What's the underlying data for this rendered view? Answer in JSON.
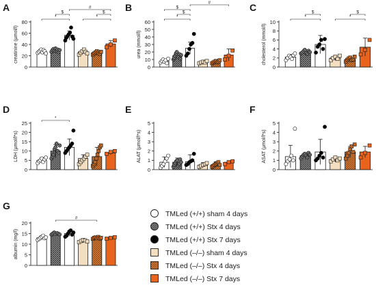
{
  "figure": {
    "groups": [
      "TMLed (+/+) sham 4 days",
      "TMLed (+/+) Stx 4 days",
      "TMLed (+/+) Stx 7 days",
      "TMLed (–/–) sham 4 days",
      "TMLed (–/–) Stx 4 days",
      "TMLed (–/–) Stx 7 days"
    ],
    "colors": {
      "axis": "#1a1a1a",
      "white": "#ffffff",
      "gray": "#bbbbbb",
      "black": "#000000",
      "beige": "#f3dec0",
      "orange_hatch": "#e8893b",
      "orange": "#e8641c"
    }
  },
  "chart_data": [
    {
      "panel": "A",
      "type": "bar",
      "ylabel": "creatinine (µmol/l)",
      "ylim": [
        0,
        80
      ],
      "yticks": [
        "0",
        "20",
        "40",
        "60",
        "80"
      ],
      "values": [
        28,
        30,
        56,
        27,
        26,
        41
      ],
      "errors": [
        3,
        3,
        8,
        3,
        2,
        6
      ],
      "points": [
        [
          25,
          27,
          29,
          31,
          26,
          30,
          28,
          24
        ],
        [
          27,
          30,
          32,
          29,
          33,
          28,
          31,
          26,
          30
        ],
        [
          47,
          52,
          55,
          58,
          61,
          70,
          54,
          50
        ],
        [
          22,
          25,
          28,
          31,
          27,
          24
        ],
        [
          22,
          24,
          26,
          28,
          25,
          23,
          27
        ],
        [
          35,
          40,
          47
        ]
      ],
      "annotations": [
        {
          "from": 0,
          "to": 2,
          "label": "*",
          "level": 1
        },
        {
          "from": 3,
          "to": 5,
          "label": "*",
          "level": 1
        },
        {
          "from": 1,
          "to": 2,
          "label": "$",
          "level": 2
        },
        {
          "from": 4,
          "to": 5,
          "label": "$",
          "level": 2
        },
        {
          "from": 2,
          "to": 5,
          "label": "#",
          "level": 3
        }
      ]
    },
    {
      "panel": "B",
      "type": "bar",
      "ylabel": "urea (mmol/l)",
      "ylim": [
        0,
        60
      ],
      "yticks": [
        "0",
        "10",
        "20",
        "30",
        "40",
        "50",
        "60"
      ],
      "values": [
        8,
        15,
        25,
        6,
        7,
        16
      ],
      "errors": [
        2,
        4,
        8,
        1.5,
        1.5,
        8
      ],
      "points": [
        [
          6,
          8,
          10,
          7,
          9,
          5,
          11
        ],
        [
          10,
          12,
          15,
          18,
          20,
          14,
          13,
          17,
          11,
          16
        ],
        [
          15,
          18,
          24,
          30,
          32,
          44
        ],
        [
          5,
          6,
          7,
          6,
          8
        ],
        [
          5,
          6,
          7,
          8,
          6,
          7,
          9
        ],
        [
          10,
          15,
          22
        ]
      ],
      "annotations": [
        {
          "from": 0,
          "to": 2,
          "label": "*",
          "level": 1
        },
        {
          "from": 1,
          "to": 2,
          "label": "$",
          "level": 2
        },
        {
          "from": 0,
          "to": 2,
          "label": "$",
          "level": 3
        },
        {
          "from": 2,
          "to": 5,
          "label": "#",
          "level": 4
        }
      ]
    },
    {
      "panel": "C",
      "type": "bar",
      "ylabel": "cholesterol (mmol/l)",
      "ylim": [
        0,
        10
      ],
      "yticks": [
        "0",
        "2",
        "4",
        "6",
        "8",
        "10"
      ],
      "values": [
        2.2,
        3.3,
        5,
        2,
        1.7,
        4.4
      ],
      "errors": [
        0.6,
        0.5,
        2,
        0.5,
        0.5,
        2
      ],
      "points": [
        [
          1.5,
          2,
          2.5,
          2.2,
          1.8,
          2.6,
          3
        ],
        [
          3,
          3.2,
          3.5,
          3.8,
          3.1,
          2.9,
          3.6,
          3.3
        ],
        [
          3.2,
          4.5,
          5,
          6,
          4,
          6.2
        ],
        [
          1.5,
          2,
          2.3,
          1.8,
          2.5
        ],
        [
          1.2,
          1.6,
          1.9,
          2.1,
          1.5,
          1.7,
          2.3
        ],
        [
          2.8,
          3.8,
          6
        ]
      ],
      "annotations": [
        {
          "from": 0,
          "to": 2,
          "label": "*",
          "level": 1
        },
        {
          "from": 3,
          "to": 5,
          "label": "*",
          "level": 1
        },
        {
          "from": 1,
          "to": 2,
          "label": "$",
          "level": 2
        },
        {
          "from": 4,
          "to": 5,
          "label": "$",
          "level": 2
        }
      ]
    },
    {
      "panel": "D",
      "type": "bar",
      "ylabel": "LDH (µmol/l*s)",
      "ylim": [
        0,
        25
      ],
      "yticks": [
        "0",
        "5",
        "10",
        "15",
        "20",
        "25"
      ],
      "values": [
        5,
        10,
        12,
        6,
        7,
        9
      ],
      "errors": [
        1.5,
        3.5,
        4.5,
        2,
        5,
        1
      ],
      "points": [
        [
          3.5,
          4.5,
          5,
          6,
          4.2,
          5.5,
          6.5
        ],
        [
          6,
          7,
          8,
          11,
          12,
          14,
          10,
          9,
          13
        ],
        [
          9,
          10,
          11,
          12,
          13,
          14,
          21
        ],
        [
          3,
          4,
          5,
          6,
          7,
          8
        ],
        [
          2,
          3,
          4,
          6,
          8,
          10,
          12,
          13
        ],
        [
          8.5,
          9.5,
          10
        ]
      ],
      "annotations": [
        {
          "from": 0,
          "to": 2,
          "label": "*",
          "level": 1
        }
      ]
    },
    {
      "panel": "E",
      "type": "bar",
      "ylabel": "ALAT (µmol/l*s)",
      "ylim": [
        0,
        5
      ],
      "yticks": [
        "0",
        "1",
        "2",
        "3",
        "4",
        "5"
      ],
      "values": [
        0.8,
        0.8,
        0.85,
        0.5,
        0.55,
        0.8
      ],
      "errors": [
        0.55,
        0.45,
        0.75,
        0.25,
        0.3,
        0.15
      ],
      "points": [
        [
          0.2,
          0.4,
          0.6,
          0.9,
          1.2,
          1.5
        ],
        [
          0.3,
          0.5,
          0.7,
          0.9,
          1,
          0.4,
          0.6,
          1.1,
          0.8
        ],
        [
          0.5,
          0.6,
          0.8,
          0.9,
          1,
          1.7
        ],
        [
          0.3,
          0.4,
          0.5,
          0.6,
          0.7
        ],
        [
          0.3,
          0.4,
          0.5,
          0.6,
          0.7,
          0.8,
          0.5
        ],
        [
          0.6,
          0.8,
          0.9
        ]
      ],
      "annotations": []
    },
    {
      "panel": "F",
      "type": "bar",
      "ylabel": "ASAT (µmol/l*s)",
      "ylim": [
        0,
        5
      ],
      "yticks": [
        "0",
        "1",
        "2",
        "3",
        "4",
        "5"
      ],
      "values": [
        1.4,
        1.5,
        1.9,
        1.1,
        1.9,
        1.9
      ],
      "errors": [
        1.2,
        0.35,
        1.35,
        0.3,
        0.6,
        0.6
      ],
      "points": [
        [
          0.6,
          0.9,
          1.1,
          1.5,
          1,
          4.4
        ],
        [
          1.2,
          1.4,
          1.6,
          1.7,
          1.5,
          1.3,
          1.8,
          1.6
        ],
        [
          1,
          1.2,
          1.5,
          1.8,
          1.3,
          4.6
        ],
        [
          0.9,
          1.1,
          1.3,
          1,
          1.2
        ],
        [
          1.2,
          1.5,
          1.8,
          2.2,
          2.5,
          1.9,
          2.7
        ],
        [
          1.3,
          1.8,
          2.6
        ]
      ],
      "annotations": []
    },
    {
      "panel": "G",
      "type": "bar",
      "ylabel": "albumin (mg/l)",
      "ylim": [
        0,
        20
      ],
      "yticks": [
        "0",
        "5",
        "10",
        "15",
        "20"
      ],
      "values": [
        13,
        15,
        15,
        11.5,
        13,
        13
      ],
      "errors": [
        1,
        0.5,
        1.2,
        0.8,
        0.5,
        0.5
      ],
      "points": [
        [
          12,
          12.5,
          13,
          13.5,
          14,
          12.8,
          13.2
        ],
        [
          14.5,
          15,
          15.5,
          14.8,
          15.2,
          15,
          14.6
        ],
        [
          13.5,
          14,
          15,
          16,
          16.5,
          14.5,
          15.5
        ],
        [
          11,
          11.5,
          12,
          11.8,
          11.3
        ],
        [
          12.5,
          13,
          13.2,
          12.8,
          13.4,
          12.7,
          13
        ],
        [
          12.6,
          13,
          13.3
        ]
      ],
      "annotations": [
        {
          "from": 1,
          "to": 4,
          "label": "#",
          "level": 1
        }
      ]
    }
  ]
}
